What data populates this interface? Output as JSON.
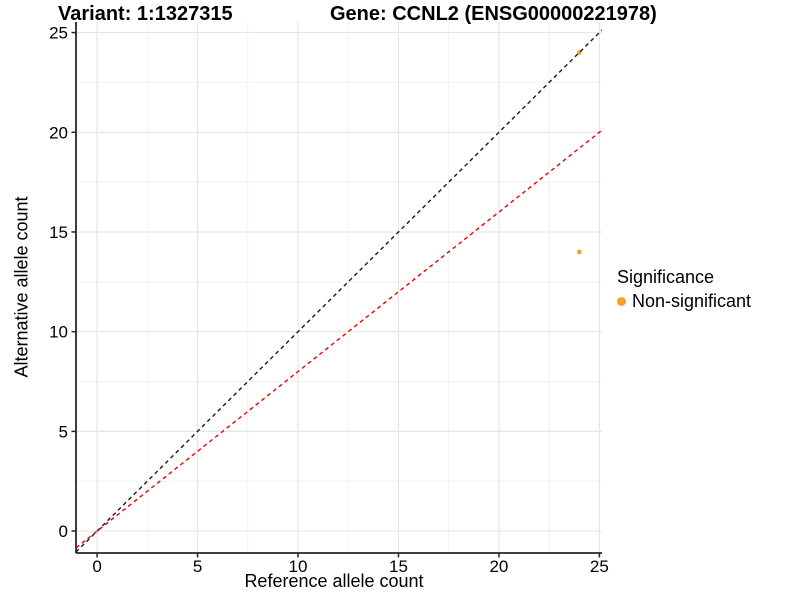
{
  "titles": {
    "variant": "Variant: 1:1327315",
    "gene": "Gene: CCNL2 (ENSG00000221978)"
  },
  "axes": {
    "x_label": "Reference allele count",
    "y_label": "Alternative allele count",
    "x_tick_labels": [
      "0",
      "5",
      "10",
      "15",
      "20",
      "25"
    ],
    "y_tick_labels": [
      "0",
      "5",
      "10",
      "15",
      "20",
      "25"
    ]
  },
  "legend": {
    "title": "Significance",
    "items": [
      {
        "label": "Non-significant",
        "color": "#F7A128"
      }
    ]
  },
  "chart_data": {
    "type": "scatter",
    "title": "Variant: 1:1327315 | Gene: CCNL2 (ENSG00000221978)",
    "xlabel": "Reference allele count",
    "ylabel": "Alternative allele count",
    "xlim": [
      -1.05,
      25.13
    ],
    "ylim": [
      -1.1,
      25.53
    ],
    "x_major_ticks": [
      0,
      5,
      10,
      15,
      20,
      25
    ],
    "y_major_ticks": [
      0,
      5,
      10,
      15,
      20,
      25
    ],
    "grid": {
      "major": true,
      "minor": true
    },
    "points": [
      {
        "x": 24,
        "y": 24,
        "series": "Non-significant",
        "color": "#F7A128"
      },
      {
        "x": 24,
        "y": 14,
        "series": "Non-significant",
        "color": "#F7A128"
      }
    ],
    "lines": [
      {
        "name": "identity",
        "slope": 1,
        "intercept": 0,
        "color": "#1a1a1a",
        "dash": "dashed"
      },
      {
        "name": "expected-ratio",
        "slope": 0.8,
        "intercept": 0,
        "color": "#EE0000",
        "dash": "dashed"
      }
    ],
    "legend_position": "right"
  },
  "colors": {
    "background": "#FFFFFF",
    "grid_major": "#E6E6E6",
    "grid_minor": "#F2F2F2",
    "axis_line": "#262626",
    "tick_text": "#000000",
    "point_orange": "#F7A128",
    "identity_line": "#1a1a1a",
    "ratio_line": "#EE0000"
  }
}
